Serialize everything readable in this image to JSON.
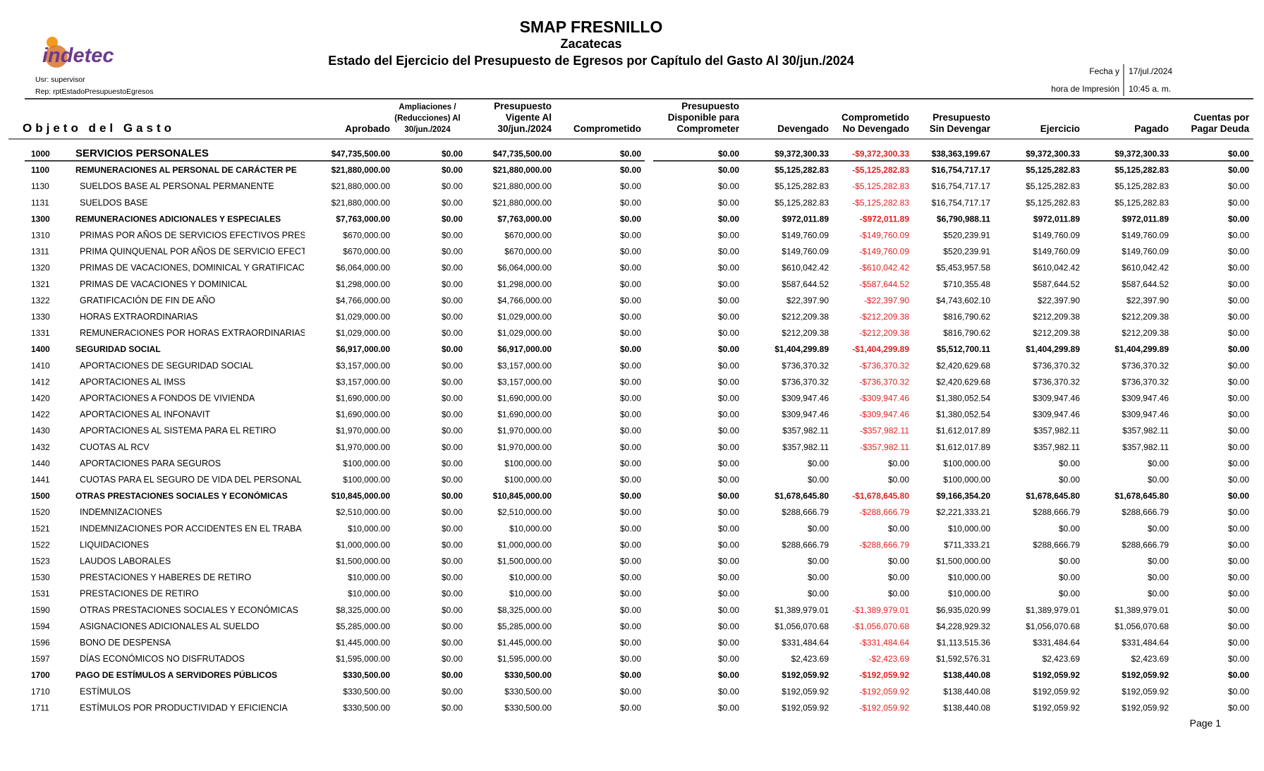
{
  "header": {
    "title": "SMAP FRESNILLO",
    "subtitle": "Zacatecas",
    "report_title": "Estado del Ejercicio del Presupuesto de Egresos por Capítulo del Gasto Al 30/jun./2024",
    "logo": "indetec",
    "user": "Usr: supervisor",
    "report": "Rep: rptEstadoPresupuestoEgresos",
    "date_label": "Fecha y",
    "date": "17/jul./2024",
    "time_label": "hora de Impresión",
    "time": "10:45 a. m."
  },
  "table": {
    "first_column": "Objeto del Gasto",
    "columns": [
      [
        "Aprobado"
      ],
      [
        "Ampliaciones /",
        "(Reducciones) Al",
        "30/jun./2024"
      ],
      [
        "Presupuesto",
        "Vigente Al",
        "30/jun./2024"
      ],
      [
        "Comprometido"
      ],
      [
        "Presupuesto",
        "Disponible para",
        "Comprometer"
      ],
      [
        "Devengado"
      ],
      [
        "Comprometido",
        "No Devengado"
      ],
      [
        "Presupuesto",
        "Sin Devengar"
      ],
      [
        "Ejercicio"
      ],
      [
        "Pagado"
      ],
      [
        "Cuentas por",
        "Pagar Deuda"
      ]
    ],
    "rows": [
      [
        "1000",
        "SERVICIOS PERSONALES",
        "$47,735,500.00",
        "$0.00",
        "$47,735,500.00",
        "$0.00",
        "$0.00",
        "$9,372,300.33",
        "-$9,372,300.33",
        "$38,363,199.67",
        "$9,372,300.33",
        "$9,372,300.33",
        "$0.00"
      ],
      [
        "1100",
        "REMUNERACIONES AL PERSONAL DE CARÁCTER PE",
        "$21,880,000.00",
        "$0.00",
        "$21,880,000.00",
        "$0.00",
        "$0.00",
        "$5,125,282.83",
        "-$5,125,282.83",
        "$16,754,717.17",
        "$5,125,282.83",
        "$5,125,282.83",
        "$0.00"
      ],
      [
        "1130",
        "SUELDOS BASE AL PERSONAL PERMANENTE",
        "$21,880,000.00",
        "$0.00",
        "$21,880,000.00",
        "$0.00",
        "$0.00",
        "$5,125,282.83",
        "-$5,125,282.83",
        "$16,754,717.17",
        "$5,125,282.83",
        "$5,125,282.83",
        "$0.00"
      ],
      [
        "1131",
        "SUELDOS BASE",
        "$21,880,000.00",
        "$0.00",
        "$21,880,000.00",
        "$0.00",
        "$0.00",
        "$5,125,282.83",
        "-$5,125,282.83",
        "$16,754,717.17",
        "$5,125,282.83",
        "$5,125,282.83",
        "$0.00"
      ],
      [
        "1300",
        "REMUNERACIONES ADICIONALES Y ESPECIALES",
        "$7,763,000.00",
        "$0.00",
        "$7,763,000.00",
        "$0.00",
        "$0.00",
        "$972,011.89",
        "-$972,011.89",
        "$6,790,988.11",
        "$972,011.89",
        "$972,011.89",
        "$0.00"
      ],
      [
        "1310",
        "PRIMAS POR AÑOS DE SERVICIOS EFECTIVOS PRES",
        "$670,000.00",
        "$0.00",
        "$670,000.00",
        "$0.00",
        "$0.00",
        "$149,760.09",
        "-$149,760.09",
        "$520,239.91",
        "$149,760.09",
        "$149,760.09",
        "$0.00"
      ],
      [
        "1311",
        "PRIMA QUINQUENAL POR AÑOS DE SERVICIO EFECT",
        "$670,000.00",
        "$0.00",
        "$670,000.00",
        "$0.00",
        "$0.00",
        "$149,760.09",
        "-$149,760.09",
        "$520,239.91",
        "$149,760.09",
        "$149,760.09",
        "$0.00"
      ],
      [
        "1320",
        "PRIMAS DE VACACIONES, DOMINICAL Y GRATIFICAC",
        "$6,064,000.00",
        "$0.00",
        "$6,064,000.00",
        "$0.00",
        "$0.00",
        "$610,042.42",
        "-$610,042.42",
        "$5,453,957.58",
        "$610,042.42",
        "$610,042.42",
        "$0.00"
      ],
      [
        "1321",
        "PRIMAS DE VACACIONES Y DOMINICAL",
        "$1,298,000.00",
        "$0.00",
        "$1,298,000.00",
        "$0.00",
        "$0.00",
        "$587,644.52",
        "-$587,644.52",
        "$710,355.48",
        "$587,644.52",
        "$587,644.52",
        "$0.00"
      ],
      [
        "1322",
        "GRATIFICACIÓN DE FIN DE AÑO",
        "$4,766,000.00",
        "$0.00",
        "$4,766,000.00",
        "$0.00",
        "$0.00",
        "$22,397.90",
        "-$22,397.90",
        "$4,743,602.10",
        "$22,397.90",
        "$22,397.90",
        "$0.00"
      ],
      [
        "1330",
        "HORAS EXTRAORDINARIAS",
        "$1,029,000.00",
        "$0.00",
        "$1,029,000.00",
        "$0.00",
        "$0.00",
        "$212,209.38",
        "-$212,209.38",
        "$816,790.62",
        "$212,209.38",
        "$212,209.38",
        "$0.00"
      ],
      [
        "1331",
        "REMUNERACIONES POR HORAS EXTRAORDINARIAS",
        "$1,029,000.00",
        "$0.00",
        "$1,029,000.00",
        "$0.00",
        "$0.00",
        "$212,209.38",
        "-$212,209.38",
        "$816,790.62",
        "$212,209.38",
        "$212,209.38",
        "$0.00"
      ],
      [
        "1400",
        "SEGURIDAD SOCIAL",
        "$6,917,000.00",
        "$0.00",
        "$6,917,000.00",
        "$0.00",
        "$0.00",
        "$1,404,299.89",
        "-$1,404,299.89",
        "$5,512,700.11",
        "$1,404,299.89",
        "$1,404,299.89",
        "$0.00"
      ],
      [
        "1410",
        "APORTACIONES DE SEGURIDAD SOCIAL",
        "$3,157,000.00",
        "$0.00",
        "$3,157,000.00",
        "$0.00",
        "$0.00",
        "$736,370.32",
        "-$736,370.32",
        "$2,420,629.68",
        "$736,370.32",
        "$736,370.32",
        "$0.00"
      ],
      [
        "1412",
        "APORTACIONES AL IMSS",
        "$3,157,000.00",
        "$0.00",
        "$3,157,000.00",
        "$0.00",
        "$0.00",
        "$736,370.32",
        "-$736,370.32",
        "$2,420,629.68",
        "$736,370.32",
        "$736,370.32",
        "$0.00"
      ],
      [
        "1420",
        "APORTACIONES A FONDOS DE VIVIENDA",
        "$1,690,000.00",
        "$0.00",
        "$1,690,000.00",
        "$0.00",
        "$0.00",
        "$309,947.46",
        "-$309,947.46",
        "$1,380,052.54",
        "$309,947.46",
        "$309,947.46",
        "$0.00"
      ],
      [
        "1422",
        "APORTACIONES AL INFONAVIT",
        "$1,690,000.00",
        "$0.00",
        "$1,690,000.00",
        "$0.00",
        "$0.00",
        "$309,947.46",
        "-$309,947.46",
        "$1,380,052.54",
        "$309,947.46",
        "$309,947.46",
        "$0.00"
      ],
      [
        "1430",
        "APORTACIONES AL SISTEMA PARA EL RETIRO",
        "$1,970,000.00",
        "$0.00",
        "$1,970,000.00",
        "$0.00",
        "$0.00",
        "$357,982.11",
        "-$357,982.11",
        "$1,612,017.89",
        "$357,982.11",
        "$357,982.11",
        "$0.00"
      ],
      [
        "1432",
        "CUOTAS AL RCV",
        "$1,970,000.00",
        "$0.00",
        "$1,970,000.00",
        "$0.00",
        "$0.00",
        "$357,982.11",
        "-$357,982.11",
        "$1,612,017.89",
        "$357,982.11",
        "$357,982.11",
        "$0.00"
      ],
      [
        "1440",
        "APORTACIONES PARA SEGUROS",
        "$100,000.00",
        "$0.00",
        "$100,000.00",
        "$0.00",
        "$0.00",
        "$0.00",
        "$0.00",
        "$100,000.00",
        "$0.00",
        "$0.00",
        "$0.00"
      ],
      [
        "1441",
        "CUOTAS PARA EL SEGURO DE VIDA DEL PERSONAL",
        "$100,000.00",
        "$0.00",
        "$100,000.00",
        "$0.00",
        "$0.00",
        "$0.00",
        "$0.00",
        "$100,000.00",
        "$0.00",
        "$0.00",
        "$0.00"
      ],
      [
        "1500",
        "OTRAS PRESTACIONES SOCIALES Y ECONÓMICAS",
        "$10,845,000.00",
        "$0.00",
        "$10,845,000.00",
        "$0.00",
        "$0.00",
        "$1,678,645.80",
        "-$1,678,645.80",
        "$9,166,354.20",
        "$1,678,645.80",
        "$1,678,645.80",
        "$0.00"
      ],
      [
        "1520",
        "INDEMNIZACIONES",
        "$2,510,000.00",
        "$0.00",
        "$2,510,000.00",
        "$0.00",
        "$0.00",
        "$288,666.79",
        "-$288,666.79",
        "$2,221,333.21",
        "$288,666.79",
        "$288,666.79",
        "$0.00"
      ],
      [
        "1521",
        "INDEMNIZACIONES POR ACCIDENTES EN EL TRABA",
        "$10,000.00",
        "$0.00",
        "$10,000.00",
        "$0.00",
        "$0.00",
        "$0.00",
        "$0.00",
        "$10,000.00",
        "$0.00",
        "$0.00",
        "$0.00"
      ],
      [
        "1522",
        "LIQUIDACIONES",
        "$1,000,000.00",
        "$0.00",
        "$1,000,000.00",
        "$0.00",
        "$0.00",
        "$288,666.79",
        "-$288,666.79",
        "$711,333.21",
        "$288,666.79",
        "$288,666.79",
        "$0.00"
      ],
      [
        "1523",
        "LAUDOS LABORALES",
        "$1,500,000.00",
        "$0.00",
        "$1,500,000.00",
        "$0.00",
        "$0.00",
        "$0.00",
        "$0.00",
        "$1,500,000.00",
        "$0.00",
        "$0.00",
        "$0.00"
      ],
      [
        "1530",
        "PRESTACIONES Y HABERES DE RETIRO",
        "$10,000.00",
        "$0.00",
        "$10,000.00",
        "$0.00",
        "$0.00",
        "$0.00",
        "$0.00",
        "$10,000.00",
        "$0.00",
        "$0.00",
        "$0.00"
      ],
      [
        "1531",
        "PRESTACIONES DE RETIRO",
        "$10,000.00",
        "$0.00",
        "$10,000.00",
        "$0.00",
        "$0.00",
        "$0.00",
        "$0.00",
        "$10,000.00",
        "$0.00",
        "$0.00",
        "$0.00"
      ],
      [
        "1590",
        "OTRAS PRESTACIONES SOCIALES Y ECONÓMICAS",
        "$8,325,000.00",
        "$0.00",
        "$8,325,000.00",
        "$0.00",
        "$0.00",
        "$1,389,979.01",
        "-$1,389,979.01",
        "$6,935,020.99",
        "$1,389,979.01",
        "$1,389,979.01",
        "$0.00"
      ],
      [
        "1594",
        "ASIGNACIONES ADICIONALES AL SUELDO",
        "$5,285,000.00",
        "$0.00",
        "$5,285,000.00",
        "$0.00",
        "$0.00",
        "$1,056,070.68",
        "-$1,056,070.68",
        "$4,228,929.32",
        "$1,056,070.68",
        "$1,056,070.68",
        "$0.00"
      ],
      [
        "1596",
        "BONO DE DESPENSA",
        "$1,445,000.00",
        "$0.00",
        "$1,445,000.00",
        "$0.00",
        "$0.00",
        "$331,484.64",
        "-$331,484.64",
        "$1,113,515.36",
        "$331,484.64",
        "$331,484.64",
        "$0.00"
      ],
      [
        "1597",
        "DÍAS ECONÓMICOS NO DISFRUTADOS",
        "$1,595,000.00",
        "$0.00",
        "$1,595,000.00",
        "$0.00",
        "$0.00",
        "$2,423.69",
        "-$2,423.69",
        "$1,592,576.31",
        "$2,423.69",
        "$2,423.69",
        "$0.00"
      ],
      [
        "1700",
        "PAGO DE ESTÍMULOS A SERVIDORES PÚBLICOS",
        "$330,500.00",
        "$0.00",
        "$330,500.00",
        "$0.00",
        "$0.00",
        "$192,059.92",
        "-$192,059.92",
        "$138,440.08",
        "$192,059.92",
        "$192,059.92",
        "$0.00"
      ],
      [
        "1710",
        "ESTÍMULOS",
        "$330,500.00",
        "$0.00",
        "$330,500.00",
        "$0.00",
        "$0.00",
        "$192,059.92",
        "-$192,059.92",
        "$138,440.08",
        "$192,059.92",
        "$192,059.92",
        "$0.00"
      ],
      [
        "1711",
        "ESTÍMULOS POR PRODUCTIVIDAD Y EFICIENCIA",
        "$330,500.00",
        "$0.00",
        "$330,500.00",
        "$0.00",
        "$0.00",
        "$192,059.92",
        "-$192,059.92",
        "$138,440.08",
        "$192,059.92",
        "$192,059.92",
        "$0.00"
      ]
    ]
  },
  "footer": {
    "page": "Page 1"
  }
}
